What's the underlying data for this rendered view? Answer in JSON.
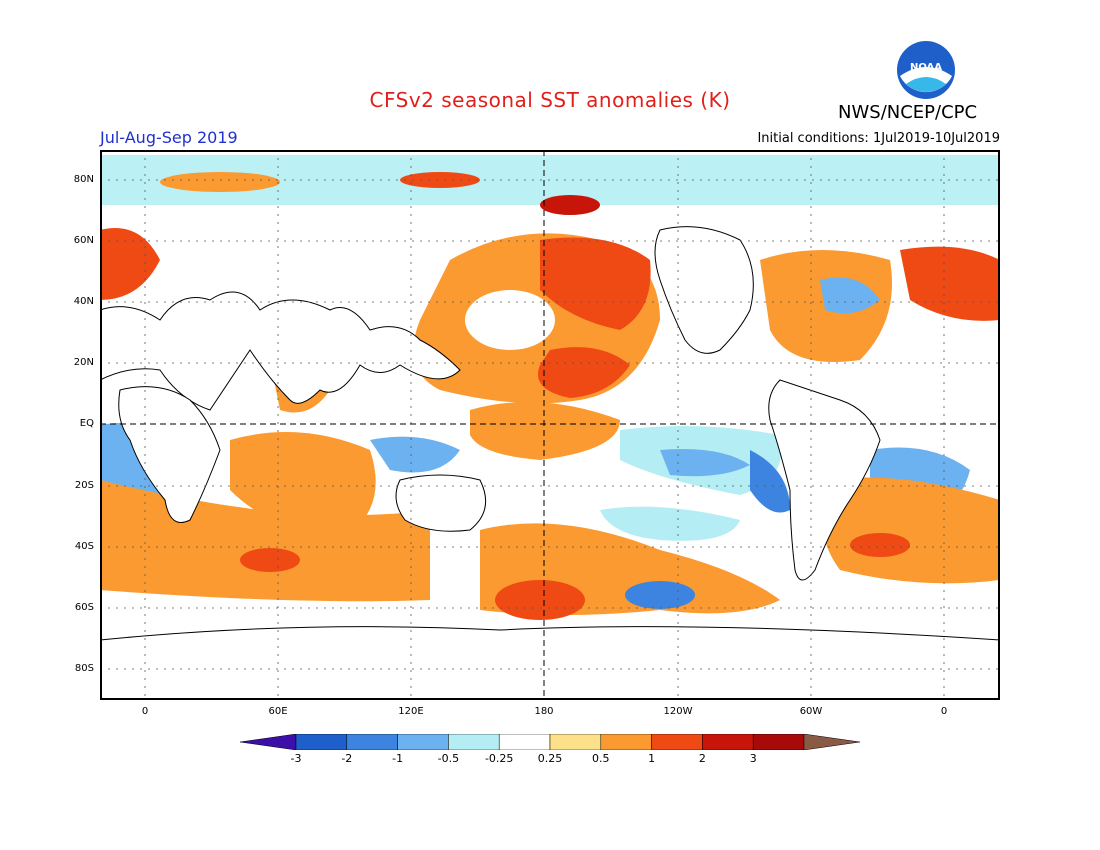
{
  "header": {
    "title": "CFSv2 seasonal SST anomalies (K)",
    "agency": "NWS/NCEP/CPC",
    "period": "Jul-Aug-Sep 2019",
    "initial_conditions": "Initial conditions: 1Jul2019-10Jul2019",
    "logo_text": "NOAA"
  },
  "axes": {
    "lat_labels": [
      "80N",
      "60N",
      "40N",
      "20N",
      "EQ",
      "20S",
      "40S",
      "60S",
      "80S"
    ],
    "lon_labels": [
      "0",
      "60E",
      "120E",
      "180",
      "120W",
      "60W",
      "0"
    ]
  },
  "colorbar": {
    "labels": [
      "-3",
      "-2",
      "-1",
      "-0.5",
      "-0.25",
      "0.25",
      "0.5",
      "1",
      "2",
      "3"
    ],
    "colors": [
      "#3c10a8",
      "#1e5fcc",
      "#3c84e0",
      "#6cb2f0",
      "#b4eef4",
      "#ffffff",
      "#fce08a",
      "#fa9a30",
      "#ef4a14",
      "#c8150a",
      "#a80a0a",
      "#8b5a44"
    ]
  },
  "colors": {
    "title": "#e0201a",
    "period": "#2030d0"
  }
}
